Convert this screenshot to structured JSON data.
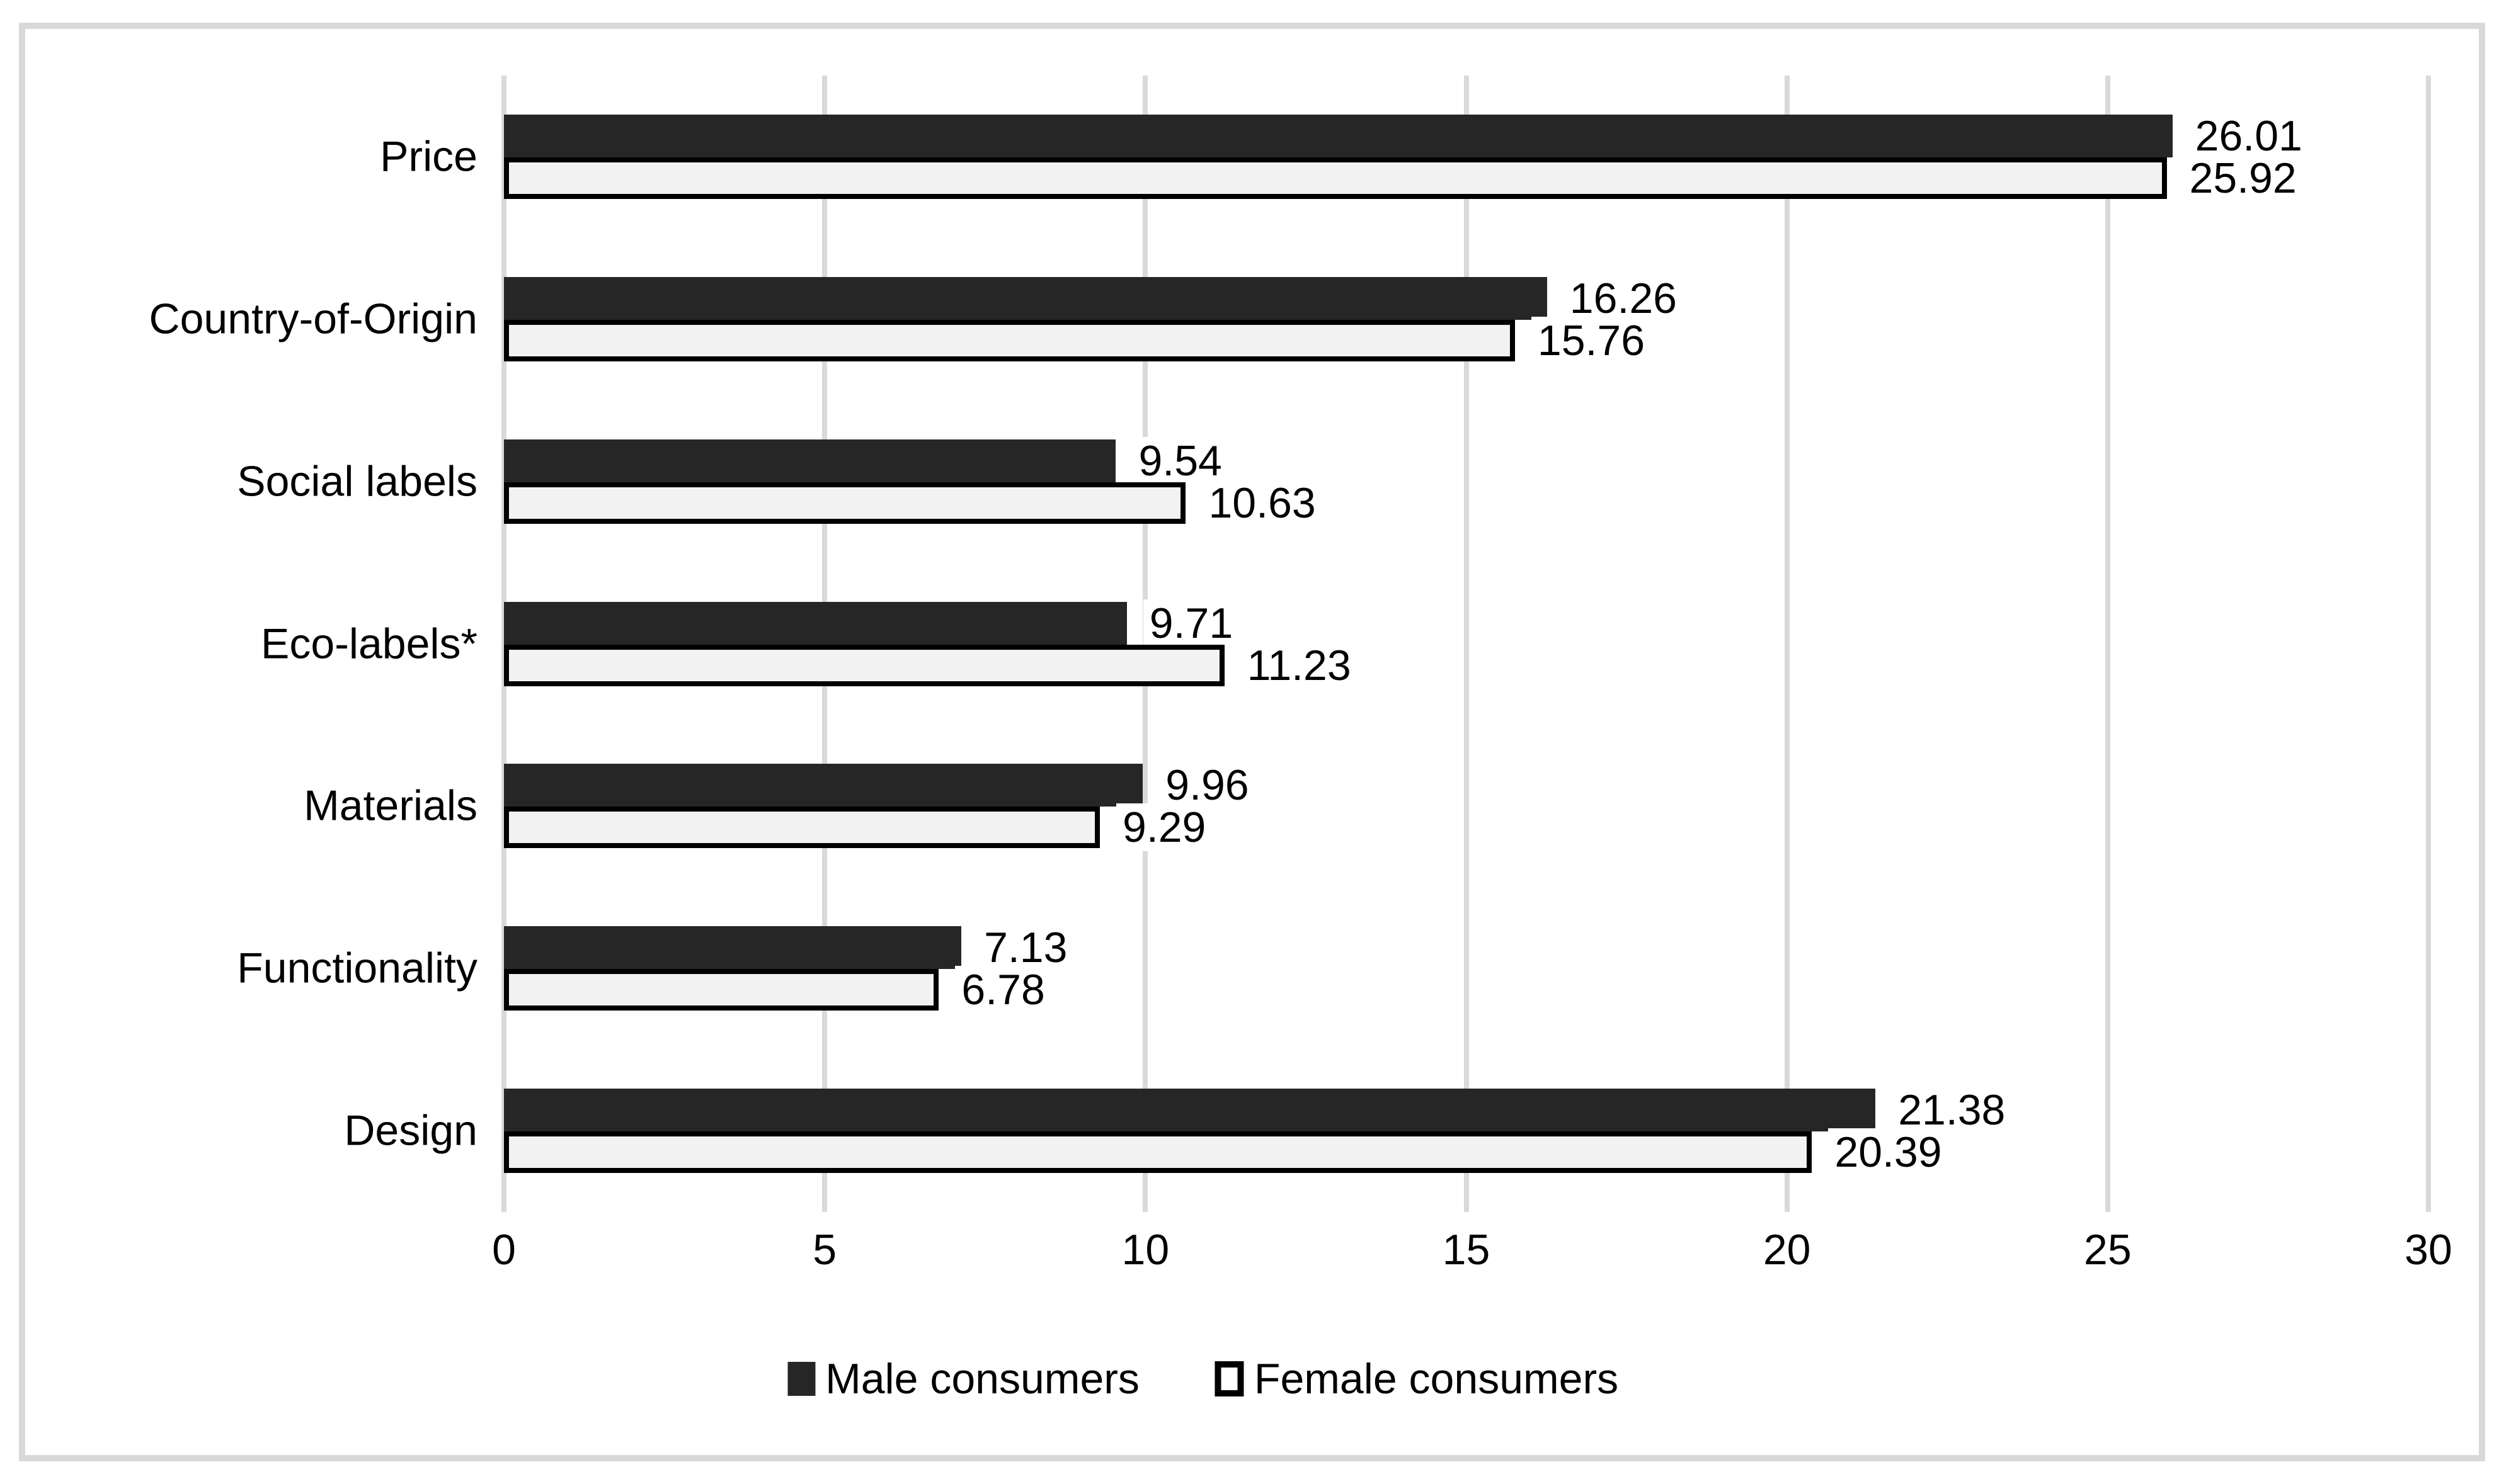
{
  "chart_data": {
    "type": "bar",
    "orientation": "horizontal",
    "title": "",
    "xlabel": "",
    "ylabel": "",
    "categories": [
      "Price",
      "Country-of-Origin",
      "Social labels",
      "Eco-labels*",
      "Materials",
      "Functionality",
      "Design"
    ],
    "series": [
      {
        "name": "Male consumers",
        "values": [
          26.01,
          16.26,
          9.54,
          9.71,
          9.96,
          7.13,
          21.38
        ]
      },
      {
        "name": "Female consumers",
        "values": [
          25.92,
          15.76,
          10.63,
          11.23,
          9.29,
          6.78,
          20.39
        ]
      }
    ],
    "x_ticks": [
      "0",
      "5",
      "10",
      "15",
      "20",
      "25",
      "30"
    ],
    "xlim": [
      0,
      30
    ],
    "grid": "vertical gridlines on",
    "legend_position": "bottom",
    "colors": {
      "male_bar": "#262626",
      "female_bar_fill": "#f2f2f2",
      "female_bar_border": "#000000",
      "gridline": "#d9d9d9",
      "chart_border": "#d9d9d9",
      "text": "#000000",
      "background": "#ffffff"
    }
  }
}
